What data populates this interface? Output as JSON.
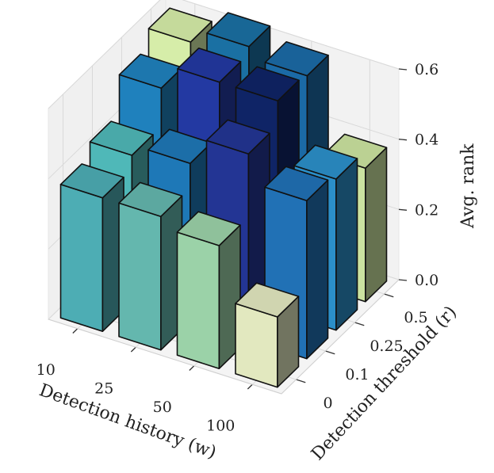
{
  "chart_data": {
    "type": "bar3d",
    "title": "",
    "xlabel": "Detection history (w)",
    "ylabel": "Detection threshold (r)",
    "zlabel": "Avg. rank",
    "x_categories": [
      "10",
      "25",
      "50",
      "100"
    ],
    "y_categories": [
      "0",
      "0.1",
      "0.25",
      "0.5"
    ],
    "z_ticks": [
      "0.0",
      "0.2",
      "0.4",
      "0.6"
    ],
    "zlim": [
      0,
      0.6
    ],
    "grid": true,
    "colormap": "YlGnBu",
    "bars": [
      {
        "w": "10",
        "r": "0",
        "value": 0.38,
        "color": "#4dadb4"
      },
      {
        "w": "10",
        "r": "0.1",
        "value": 0.42,
        "color": "#4fb8b8"
      },
      {
        "w": "10",
        "r": "0.25",
        "value": 0.53,
        "color": "#1f81bd"
      },
      {
        "w": "10",
        "r": "0.5",
        "value": 0.58,
        "color": "#d6eda9"
      },
      {
        "w": "25",
        "r": "0",
        "value": 0.38,
        "color": "#64b7ae"
      },
      {
        "w": "25",
        "r": "0.1",
        "value": 0.45,
        "color": "#1e78b7"
      },
      {
        "w": "25",
        "r": "0.25",
        "value": 0.6,
        "color": "#2339a2"
      },
      {
        "w": "25",
        "r": "0.5",
        "value": 0.62,
        "color": "#1a70a3"
      },
      {
        "w": "50",
        "r": "0",
        "value": 0.35,
        "color": "#9bd2a8"
      },
      {
        "w": "50",
        "r": "0.1",
        "value": 0.53,
        "color": "#233594"
      },
      {
        "w": "50",
        "r": "0.25",
        "value": 0.6,
        "color": "#0f2466"
      },
      {
        "w": "50",
        "r": "0.5",
        "value": 0.59,
        "color": "#1b6aa6"
      },
      {
        "w": "100",
        "r": "0",
        "value": 0.2,
        "color": "#e2e8bf"
      },
      {
        "w": "100",
        "r": "0.1",
        "value": 0.45,
        "color": "#2171b5"
      },
      {
        "w": "100",
        "r": "0.25",
        "value": 0.43,
        "color": "#2b8fc9"
      },
      {
        "w": "100",
        "r": "0.5",
        "value": 0.38,
        "color": "#cbe3a0"
      }
    ]
  }
}
